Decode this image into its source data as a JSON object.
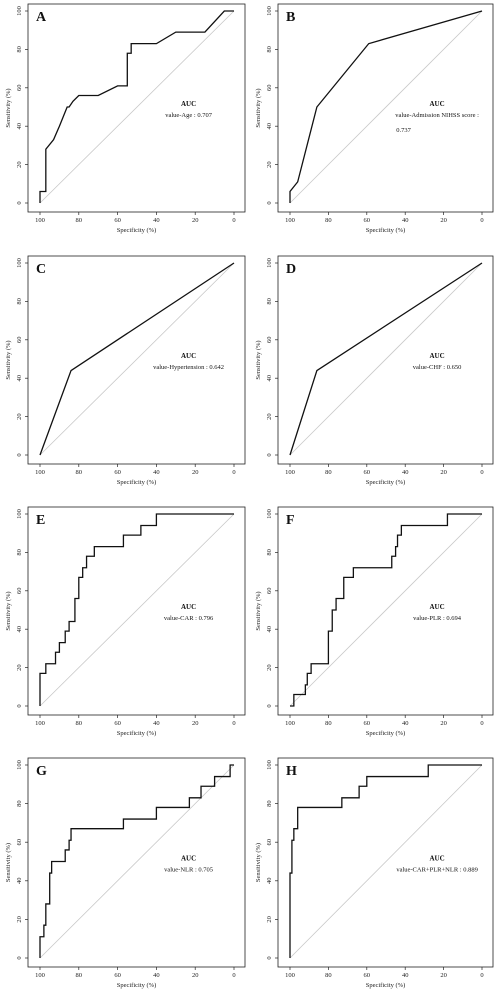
{
  "chart_data": [
    {
      "type": "line",
      "panel_label": "A",
      "xlabel": "Specificity (%)",
      "ylabel": "Sensitivity (%)",
      "xlim": [
        100,
        0
      ],
      "ylim": [
        0,
        100
      ],
      "xticks": [
        100,
        80,
        60,
        40,
        20,
        0
      ],
      "yticks": [
        0,
        20,
        40,
        60,
        80,
        100
      ],
      "auc_title": "AUC",
      "auc_lines": [
        "value-Age : 0.707"
      ],
      "series": [
        {
          "x": [
            100,
            100,
            97,
            97,
            93,
            90,
            88,
            86,
            85,
            83,
            80,
            73,
            70,
            60,
            55,
            55,
            53,
            53,
            40,
            30,
            15,
            5,
            0
          ],
          "y": [
            0,
            6,
            6,
            28,
            33,
            40,
            45,
            50,
            50,
            53,
            56,
            56,
            56,
            61,
            61,
            78,
            78,
            83,
            83,
            89,
            89,
            100,
            100
          ]
        }
      ]
    },
    {
      "type": "line",
      "panel_label": "B",
      "xlabel": "Specificity (%)",
      "ylabel": "Sensitivity (%)",
      "xlim": [
        100,
        0
      ],
      "ylim": [
        0,
        100
      ],
      "xticks": [
        100,
        80,
        60,
        40,
        20,
        0
      ],
      "yticks": [
        0,
        20,
        40,
        60,
        80,
        100
      ],
      "auc_title": "AUC",
      "auc_lines": [
        "value-Admission NIHSS score :",
        "0.737"
      ],
      "series": [
        {
          "x": [
            100,
            100,
            96,
            86,
            59,
            0
          ],
          "y": [
            0,
            6,
            11,
            50,
            83,
            100
          ]
        }
      ]
    },
    {
      "type": "line",
      "panel_label": "C",
      "xlabel": "Specificity (%)",
      "ylabel": "Sensitivity (%)",
      "xlim": [
        100,
        0
      ],
      "ylim": [
        0,
        100
      ],
      "xticks": [
        100,
        80,
        60,
        40,
        20,
        0
      ],
      "yticks": [
        0,
        20,
        40,
        60,
        80,
        100
      ],
      "auc_title": "AUC",
      "auc_lines": [
        "value-Hypertension : 0.642"
      ],
      "series": [
        {
          "x": [
            100,
            84,
            0
          ],
          "y": [
            0,
            44,
            100
          ]
        }
      ]
    },
    {
      "type": "line",
      "panel_label": "D",
      "xlabel": "Specificity (%)",
      "ylabel": "Sensitivity (%)",
      "xlim": [
        100,
        0
      ],
      "ylim": [
        0,
        100
      ],
      "xticks": [
        100,
        80,
        60,
        40,
        20,
        0
      ],
      "yticks": [
        0,
        20,
        40,
        60,
        80,
        100
      ],
      "auc_title": "AUC",
      "auc_lines": [
        "value-CHF : 0.650"
      ],
      "series": [
        {
          "x": [
            100,
            86,
            0
          ],
          "y": [
            0,
            44,
            100
          ]
        }
      ]
    },
    {
      "type": "line",
      "panel_label": "E",
      "xlabel": "Specificity (%)",
      "ylabel": "Sensitivity (%)",
      "xlim": [
        100,
        0
      ],
      "ylim": [
        0,
        100
      ],
      "xticks": [
        100,
        80,
        60,
        40,
        20,
        0
      ],
      "yticks": [
        0,
        20,
        40,
        60,
        80,
        100
      ],
      "auc_title": "AUC",
      "auc_lines": [
        "value-CAR : 0.796"
      ],
      "series": [
        {
          "x": [
            100,
            100,
            97,
            97,
            92,
            92,
            90,
            90,
            87,
            87,
            85,
            85,
            82,
            82,
            80,
            80,
            78,
            78,
            76,
            76,
            74,
            74,
            72,
            72,
            57,
            57,
            48,
            48,
            40,
            40,
            0
          ],
          "y": [
            0,
            17,
            17,
            22,
            22,
            28,
            28,
            33,
            33,
            39,
            39,
            44,
            44,
            56,
            56,
            67,
            67,
            72,
            72,
            78,
            78,
            78,
            78,
            83,
            83,
            89,
            89,
            94,
            94,
            100,
            100
          ]
        }
      ]
    },
    {
      "type": "line",
      "panel_label": "F",
      "xlabel": "Specificity (%)",
      "ylabel": "Sensitivity (%)",
      "xlim": [
        100,
        0
      ],
      "ylim": [
        0,
        100
      ],
      "xticks": [
        100,
        80,
        60,
        40,
        20,
        0
      ],
      "yticks": [
        0,
        20,
        40,
        60,
        80,
        100
      ],
      "auc_title": "AUC",
      "auc_lines": [
        "value-PLR : 0.694"
      ],
      "series": [
        {
          "x": [
            100,
            98,
            98,
            92,
            92,
            91,
            91,
            89,
            89,
            80,
            80,
            78,
            78,
            76,
            76,
            72,
            72,
            67,
            67,
            56,
            56,
            47,
            47,
            45,
            45,
            44,
            44,
            42,
            42,
            18,
            18,
            0
          ],
          "y": [
            0,
            0,
            6,
            6,
            11,
            11,
            17,
            17,
            22,
            22,
            39,
            39,
            50,
            50,
            56,
            56,
            67,
            67,
            72,
            72,
            72,
            72,
            78,
            78,
            83,
            83,
            89,
            89,
            94,
            94,
            100,
            100
          ]
        }
      ]
    },
    {
      "type": "line",
      "panel_label": "G",
      "xlabel": "Specificity (%)",
      "ylabel": "Sensitivity (%)",
      "xlim": [
        100,
        0
      ],
      "ylim": [
        0,
        100
      ],
      "xticks": [
        100,
        80,
        60,
        40,
        20,
        0
      ],
      "yticks": [
        0,
        20,
        40,
        60,
        80,
        100
      ],
      "auc_title": "AUC",
      "auc_lines": [
        "value-NLR : 0.705"
      ],
      "series": [
        {
          "x": [
            100,
            100,
            98,
            98,
            97,
            97,
            95,
            95,
            94,
            94,
            87,
            87,
            85,
            85,
            84,
            84,
            82,
            82,
            57,
            57,
            40,
            40,
            23,
            23,
            17,
            17,
            10,
            10,
            5,
            5,
            2,
            2,
            0
          ],
          "y": [
            0,
            11,
            11,
            17,
            17,
            28,
            28,
            44,
            44,
            50,
            50,
            56,
            56,
            61,
            61,
            67,
            67,
            67,
            67,
            72,
            72,
            78,
            78,
            83,
            83,
            89,
            89,
            94,
            94,
            94,
            94,
            100,
            100
          ]
        }
      ]
    },
    {
      "type": "line",
      "panel_label": "H",
      "xlabel": "Specificity (%)",
      "ylabel": "Sensitivity (%)",
      "xlim": [
        100,
        0
      ],
      "ylim": [
        0,
        100
      ],
      "xticks": [
        100,
        80,
        60,
        40,
        20,
        0
      ],
      "yticks": [
        0,
        20,
        40,
        60,
        80,
        100
      ],
      "auc_title": "AUC",
      "auc_lines": [
        "value-CAR+PLR+NLR : 0.889"
      ],
      "series": [
        {
          "x": [
            100,
            100,
            99,
            99,
            98,
            98,
            96,
            96,
            94,
            94,
            73,
            73,
            64,
            64,
            60,
            60,
            28,
            28,
            0
          ],
          "y": [
            0,
            44,
            44,
            61,
            61,
            67,
            67,
            78,
            78,
            78,
            78,
            83,
            83,
            89,
            89,
            94,
            94,
            100,
            100
          ]
        }
      ]
    }
  ]
}
